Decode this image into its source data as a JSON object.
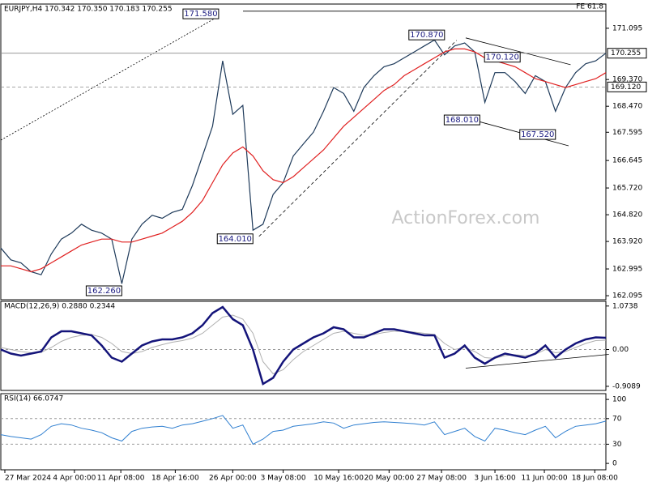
{
  "chart_data": [
    {
      "type": "line",
      "title": "EURJPY,H4  170.342 170.350 170.183 170.255",
      "watermark": "ActionForex.com",
      "x": [
        0,
        1,
        2,
        3,
        4,
        5,
        6,
        7,
        8,
        9,
        10,
        11,
        12,
        13,
        14,
        15,
        16,
        17,
        18,
        19,
        20,
        21,
        22,
        23,
        24,
        25,
        26,
        27,
        28,
        29,
        30,
        31,
        32,
        33,
        34,
        35,
        36,
        37,
        38,
        39,
        40,
        41,
        42,
        43,
        44,
        45,
        46,
        47,
        48,
        49,
        50,
        51,
        52,
        53,
        54,
        55,
        56,
        57,
        58,
        59,
        60
      ],
      "xlim": [
        0,
        60
      ],
      "ylim": [
        161.96,
        171.91
      ],
      "grid": false,
      "yticks": [
        171.095,
        {
          "value": 169.37,
          "label": "169.370"
        },
        {
          "value": 168.47,
          "label": "168.470"
        },
        167.595,
        166.645,
        {
          "value": 165.72,
          "label": "165.720"
        },
        {
          "value": 164.82,
          "label": "164.820"
        },
        {
          "value": 163.92,
          "label": "163.920"
        },
        162.995,
        162.095
      ],
      "series": [
        {
          "color": "#1e3a5a",
          "values": [
            163.7,
            163.3,
            163.2,
            162.9,
            162.8,
            163.5,
            164.0,
            164.2,
            164.5,
            164.3,
            164.2,
            164.0,
            162.5,
            164.0,
            164.5,
            164.8,
            164.7,
            164.9,
            165.0,
            165.8,
            166.8,
            167.8,
            170.0,
            168.2,
            168.5,
            164.3,
            164.5,
            165.5,
            165.9,
            166.8,
            167.2,
            167.6,
            168.3,
            169.1,
            168.9,
            168.3,
            169.1,
            169.5,
            169.8,
            169.9,
            170.1,
            170.3,
            170.5,
            170.7,
            170.2,
            170.5,
            170.6,
            170.3,
            168.6,
            169.6,
            169.6,
            169.3,
            168.9,
            169.5,
            169.3,
            168.3,
            169.1,
            169.6,
            169.9,
            170.0,
            170.255
          ]
        },
        {
          "color": "#e02020",
          "values": [
            163.1,
            163.1,
            163.0,
            162.9,
            163.0,
            163.2,
            163.4,
            163.6,
            163.8,
            163.9,
            164.0,
            164.0,
            163.9,
            163.9,
            164.0,
            164.1,
            164.2,
            164.4,
            164.6,
            164.9,
            165.3,
            165.9,
            166.5,
            166.9,
            167.1,
            166.8,
            166.3,
            166.0,
            165.9,
            166.1,
            166.4,
            166.7,
            167.0,
            167.4,
            167.8,
            168.1,
            168.4,
            168.7,
            169.0,
            169.2,
            169.5,
            169.7,
            169.9,
            170.1,
            170.3,
            170.4,
            170.4,
            170.3,
            170.1,
            170.0,
            169.9,
            169.8,
            169.6,
            169.4,
            169.3,
            169.2,
            169.1,
            169.2,
            169.3,
            169.4,
            169.6
          ]
        }
      ],
      "hlines": [
        {
          "value": 170.255,
          "label": "170.255",
          "style": "solid"
        },
        {
          "value": 169.12,
          "label": "169.120",
          "style": "dashed"
        },
        {
          "value": 171.67,
          "label": "FE 61.8",
          "style": "fe"
        }
      ],
      "annotations": [
        {
          "x": 21.6,
          "value": 171.58,
          "label": "171.580",
          "side": "left"
        },
        {
          "x": 25.0,
          "value": 164.01,
          "label": "164.010",
          "side": "left"
        },
        {
          "x": 12.0,
          "value": 162.26,
          "label": "162.260",
          "side": "left"
        },
        {
          "x": 44.0,
          "value": 170.87,
          "label": "170.870",
          "side": "left"
        },
        {
          "x": 47.5,
          "value": 168.01,
          "label": "168.010",
          "side": "left"
        },
        {
          "x": 51.5,
          "value": 170.12,
          "label": "170.120",
          "side": "left"
        },
        {
          "x": 55.0,
          "value": 167.52,
          "label": "167.520",
          "side": "left"
        }
      ],
      "trendlines": [
        {
          "x": [
            0,
            21.6
          ],
          "y": [
            167.33,
            171.5
          ],
          "style": "dotted"
        },
        {
          "x": [
            25.6,
            45.2
          ],
          "y": [
            164.09,
            170.69
          ],
          "style": "dashed"
        },
        {
          "x": [
            46.1,
            56.5
          ],
          "y": [
            170.77,
            169.87
          ],
          "style": "solid"
        },
        {
          "x": [
            46.8,
            56.3
          ],
          "y": [
            168.01,
            167.14
          ],
          "style": "solid"
        }
      ]
    },
    {
      "type": "line",
      "title": "MACD(12,26,9) 0.2880 0.2344",
      "x": [
        0,
        1,
        2,
        3,
        4,
        5,
        6,
        7,
        8,
        9,
        10,
        11,
        12,
        13,
        14,
        15,
        16,
        17,
        18,
        19,
        20,
        21,
        22,
        23,
        24,
        25,
        26,
        27,
        28,
        29,
        30,
        31,
        32,
        33,
        34,
        35,
        36,
        37,
        38,
        39,
        40,
        41,
        42,
        43,
        44,
        45,
        46,
        47,
        48,
        49,
        50,
        51,
        52,
        53,
        54,
        55,
        56,
        57,
        58,
        59,
        60
      ],
      "xlim": [
        0,
        60
      ],
      "ylim": [
        -1.01,
        1.19
      ],
      "grid": true,
      "yticks": [
        1.0738,
        {
          "value": 0,
          "label": "0.00"
        },
        -0.9089
      ],
      "series": [
        {
          "color": "#b0b0b0",
          "width": 1,
          "values": [
            0.05,
            0.0,
            -0.05,
            -0.08,
            -0.07,
            0.05,
            0.2,
            0.3,
            0.35,
            0.37,
            0.3,
            0.15,
            -0.05,
            -0.1,
            -0.05,
            0.05,
            0.12,
            0.18,
            0.22,
            0.28,
            0.4,
            0.6,
            0.8,
            0.85,
            0.75,
            0.4,
            -0.3,
            -0.6,
            -0.5,
            -0.25,
            -0.05,
            0.1,
            0.25,
            0.4,
            0.45,
            0.4,
            0.35,
            0.37,
            0.42,
            0.45,
            0.45,
            0.43,
            0.4,
            0.37,
            0.15,
            0.0,
            0.05,
            -0.05,
            -0.2,
            -0.22,
            -0.15,
            -0.13,
            -0.15,
            -0.12,
            0.0,
            -0.08,
            -0.05,
            0.05,
            0.15,
            0.22,
            0.23
          ]
        },
        {
          "color": "#14147a",
          "width": 2.5,
          "values": [
            0.0,
            -0.1,
            -0.15,
            -0.1,
            -0.05,
            0.3,
            0.45,
            0.45,
            0.4,
            0.35,
            0.1,
            -0.2,
            -0.3,
            -0.1,
            0.1,
            0.2,
            0.25,
            0.25,
            0.3,
            0.4,
            0.6,
            0.9,
            1.05,
            0.75,
            0.6,
            0.0,
            -0.85,
            -0.7,
            -0.3,
            0.0,
            0.15,
            0.3,
            0.4,
            0.55,
            0.5,
            0.3,
            0.3,
            0.4,
            0.5,
            0.5,
            0.45,
            0.4,
            0.35,
            0.35,
            -0.2,
            -0.1,
            0.1,
            -0.2,
            -0.35,
            -0.2,
            -0.1,
            -0.15,
            -0.2,
            -0.1,
            0.1,
            -0.2,
            0.0,
            0.15,
            0.25,
            0.3,
            0.29
          ]
        }
      ],
      "trendlines": [
        {
          "x": [
            46.1,
            60.3
          ],
          "y": [
            -0.46,
            -0.12
          ],
          "style": "solid"
        }
      ]
    },
    {
      "type": "line",
      "title": "RSI(14) 66.0747",
      "x": [
        0,
        1,
        2,
        3,
        4,
        5,
        6,
        7,
        8,
        9,
        10,
        11,
        12,
        13,
        14,
        15,
        16,
        17,
        18,
        19,
        20,
        21,
        22,
        23,
        24,
        25,
        26,
        27,
        28,
        29,
        30,
        31,
        32,
        33,
        34,
        35,
        36,
        37,
        38,
        39,
        40,
        41,
        42,
        43,
        44,
        45,
        46,
        47,
        48,
        49,
        50,
        51,
        52,
        53,
        54,
        55,
        56,
        57,
        58,
        59,
        60
      ],
      "xlim": [
        0,
        60
      ],
      "ylim": [
        -10,
        109
      ],
      "grid": true,
      "yticks": [
        100,
        70,
        30,
        0
      ],
      "series": [
        {
          "color": "#2f7fd0",
          "width": 1,
          "values": [
            45,
            42,
            40,
            38,
            45,
            58,
            62,
            60,
            55,
            52,
            48,
            40,
            35,
            50,
            55,
            57,
            58,
            55,
            60,
            62,
            66,
            70,
            75,
            55,
            60,
            30,
            38,
            50,
            52,
            58,
            60,
            62,
            65,
            63,
            55,
            60,
            62,
            64,
            65,
            64,
            63,
            62,
            60,
            65,
            45,
            50,
            55,
            42,
            35,
            55,
            52,
            48,
            45,
            52,
            58,
            40,
            50,
            58,
            60,
            62,
            66.07
          ]
        }
      ],
      "xticks": [
        {
          "value": 0.4,
          "label": "27 Mar 2024"
        },
        {
          "value": 7.3,
          "label": "4 Apr 00:00"
        },
        {
          "value": 11.9,
          "label": "11 Apr 08:00"
        },
        {
          "value": 17.3,
          "label": "18 Apr 16:00"
        },
        {
          "value": 23,
          "label": "26 Apr 00:00"
        },
        {
          "value": 28,
          "label": "3 May 08:00"
        },
        {
          "value": 33.5,
          "label": "10 May 16:00"
        },
        {
          "value": 38.5,
          "label": "20 May 00:00"
        },
        {
          "value": 43.7,
          "label": "27 May 08:00"
        },
        {
          "value": 49,
          "label": "3 Jun 16:00"
        },
        {
          "value": 53.9,
          "label": "11 Jun 00:00"
        },
        {
          "value": 58.9,
          "label": "18 Jun 08:00"
        }
      ]
    }
  ]
}
